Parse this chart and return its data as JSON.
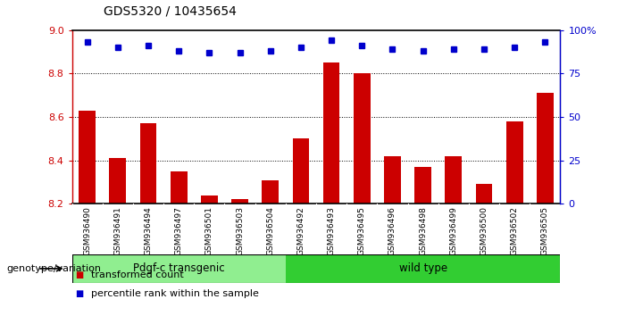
{
  "title": "GDS5320 / 10435654",
  "categories": [
    "GSM936490",
    "GSM936491",
    "GSM936494",
    "GSM936497",
    "GSM936501",
    "GSM936503",
    "GSM936504",
    "GSM936492",
    "GSM936493",
    "GSM936495",
    "GSM936496",
    "GSM936498",
    "GSM936499",
    "GSM936500",
    "GSM936502",
    "GSM936505"
  ],
  "bar_values": [
    8.63,
    8.41,
    8.57,
    8.35,
    8.24,
    8.22,
    8.31,
    8.5,
    8.85,
    8.8,
    8.42,
    8.37,
    8.42,
    8.29,
    8.58,
    8.71
  ],
  "percentile_values": [
    93,
    90,
    91,
    88,
    87,
    87,
    88,
    90,
    94,
    91,
    89,
    88,
    89,
    89,
    90,
    93
  ],
  "bar_color": "#cc0000",
  "percentile_color": "#0000cc",
  "ylim_left": [
    8.2,
    9.0
  ],
  "ylim_right": [
    0,
    100
  ],
  "yticks_left": [
    8.2,
    8.4,
    8.6,
    8.8,
    9.0
  ],
  "yticks_right": [
    0,
    25,
    50,
    75,
    100
  ],
  "ytick_labels_right": [
    "0",
    "25",
    "50",
    "75",
    "100%"
  ],
  "grid_lines": [
    8.4,
    8.6,
    8.8
  ],
  "groups": [
    {
      "label": "Pdgf-c transgenic",
      "start": 0,
      "end": 7,
      "color": "#90ee90"
    },
    {
      "label": "wild type",
      "start": 7,
      "end": 16,
      "color": "#32cd32"
    }
  ],
  "group_row_label": "genotype/variation",
  "legend_items": [
    {
      "color": "#cc0000",
      "label": "transformed count"
    },
    {
      "color": "#0000cc",
      "label": "percentile rank within the sample"
    }
  ],
  "background_color": "#ffffff",
  "plot_bg_color": "#ffffff",
  "bar_bottom": 8.2,
  "label_bg_color": "#d3d3d3",
  "spine_color_left": "#cc0000",
  "spine_color_right": "#0000cc"
}
